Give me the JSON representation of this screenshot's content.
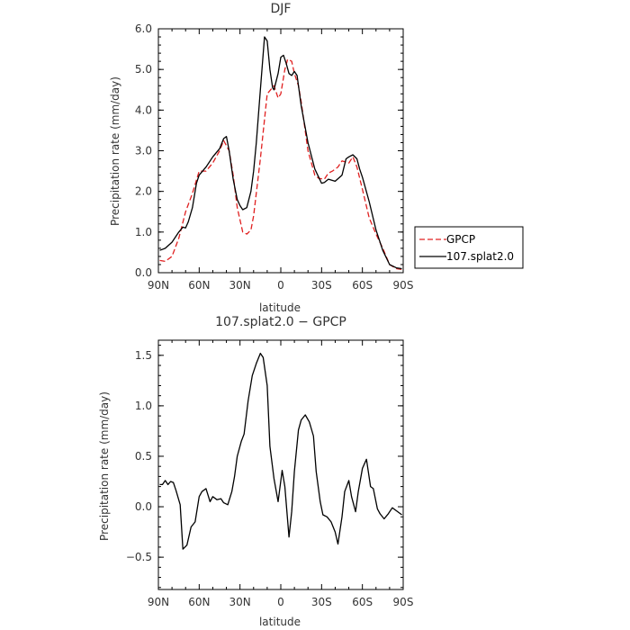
{
  "chart_data": [
    {
      "type": "line",
      "title": "DJF",
      "xlabel": "latitude",
      "ylabel": "Precipitation rate (mm/day)",
      "xlim": [
        90,
        -90
      ],
      "ylim": [
        0,
        6
      ],
      "x_tick_values": [
        90,
        60,
        30,
        0,
        -30,
        -60,
        -90
      ],
      "x_tick_labels": [
        "90N",
        "60N",
        "30N",
        "0",
        "30S",
        "60S",
        "90S"
      ],
      "y_tick_values": [
        0,
        1,
        2,
        3,
        4,
        5,
        6
      ],
      "y_tick_labels": [
        "0.0",
        "1.0",
        "2.0",
        "3.0",
        "4.0",
        "5.0",
        "6.0"
      ],
      "legend_position": "right",
      "series": [
        {
          "name": "GPCP",
          "color": "#e02020",
          "style": "dashed",
          "x": [
            89,
            85,
            80,
            75,
            70,
            65,
            60,
            55,
            50,
            45,
            42,
            38,
            35,
            32,
            28,
            25,
            22,
            20,
            15,
            10,
            5,
            2,
            0,
            -3,
            -5,
            -8,
            -10,
            -13,
            -15,
            -20,
            -25,
            -28,
            -32,
            -35,
            -38,
            -42,
            -45,
            -50,
            -53,
            -56,
            -60,
            -65,
            -70,
            -75,
            -80,
            -85,
            -89
          ],
          "y": [
            0.3,
            0.28,
            0.4,
            0.85,
            1.5,
            1.95,
            2.5,
            2.5,
            2.7,
            3.0,
            3.25,
            3.0,
            2.4,
            1.6,
            1.0,
            0.95,
            1.05,
            1.4,
            2.8,
            4.4,
            4.6,
            4.3,
            4.4,
            5.0,
            5.25,
            5.2,
            4.9,
            4.6,
            4.2,
            3.0,
            2.4,
            2.32,
            2.3,
            2.45,
            2.5,
            2.6,
            2.75,
            2.7,
            2.85,
            2.6,
            2.05,
            1.35,
            0.95,
            0.6,
            0.2,
            0.1,
            0.08
          ]
        },
        {
          "name": "107.splat2.0",
          "color": "#000000",
          "style": "solid",
          "x": [
            89,
            85,
            80,
            75,
            72,
            70,
            68,
            65,
            62,
            60,
            55,
            50,
            45,
            42,
            40,
            38,
            35,
            32,
            30,
            28,
            25,
            22,
            20,
            18,
            15,
            12,
            10,
            8,
            6,
            5,
            2,
            0,
            -2,
            -4,
            -6,
            -8,
            -10,
            -12,
            -15,
            -20,
            -25,
            -30,
            -32,
            -35,
            -40,
            -45,
            -48,
            -50,
            -53,
            -56,
            -58,
            -60,
            -65,
            -70,
            -75,
            -80,
            -85,
            -89
          ],
          "y": [
            0.55,
            0.6,
            0.75,
            1.0,
            1.12,
            1.1,
            1.25,
            1.6,
            2.2,
            2.4,
            2.6,
            2.85,
            3.05,
            3.3,
            3.35,
            3.0,
            2.3,
            1.8,
            1.65,
            1.55,
            1.6,
            2.0,
            2.5,
            3.2,
            4.5,
            5.8,
            5.7,
            5.0,
            4.55,
            4.5,
            4.9,
            5.3,
            5.35,
            5.15,
            4.9,
            4.85,
            4.95,
            4.85,
            4.1,
            3.2,
            2.55,
            2.2,
            2.22,
            2.3,
            2.25,
            2.4,
            2.8,
            2.85,
            2.9,
            2.8,
            2.55,
            2.35,
            1.75,
            1.05,
            0.55,
            0.2,
            0.12,
            0.1
          ]
        }
      ]
    },
    {
      "type": "line",
      "title": "107.splat2.0 − GPCP",
      "xlabel": "latitude",
      "ylabel": "Precipitation rate (mm/day)",
      "xlim": [
        90,
        -90
      ],
      "ylim": [
        -0.82,
        1.65
      ],
      "x_tick_values": [
        90,
        60,
        30,
        0,
        -30,
        -60,
        -90
      ],
      "x_tick_labels": [
        "90N",
        "60N",
        "30N",
        "0",
        "30S",
        "60S",
        "90S"
      ],
      "y_tick_values": [
        -0.5,
        0,
        0.5,
        1,
        1.5
      ],
      "y_tick_labels": [
        "−0.5",
        "0.0",
        "0.5",
        "1.0",
        "1.5"
      ],
      "series": [
        {
          "name": "",
          "color": "#000000",
          "style": "solid",
          "x": [
            89,
            87,
            85,
            83,
            81,
            79,
            77,
            74,
            72,
            69,
            66,
            63,
            60,
            58,
            55,
            52,
            50,
            47,
            44,
            42,
            39,
            36,
            34,
            32,
            29,
            27,
            24,
            21,
            18,
            15,
            13,
            10,
            8,
            5,
            2,
            -1,
            -3,
            -6,
            -8,
            -10,
            -13,
            -15,
            -18,
            -21,
            -24,
            -26,
            -29,
            -31,
            -34,
            -37,
            -40,
            -42,
            -45,
            -47,
            -50,
            -52,
            -55,
            -57,
            -60,
            -63,
            -66,
            -68,
            -71,
            -73,
            -76,
            -79,
            -82,
            -85,
            -89
          ],
          "y": [
            0.22,
            0.22,
            0.26,
            0.22,
            0.25,
            0.24,
            0.16,
            0.02,
            -0.42,
            -0.38,
            -0.2,
            -0.15,
            0.1,
            0.15,
            0.18,
            0.05,
            0.1,
            0.07,
            0.08,
            0.04,
            0.02,
            0.15,
            0.3,
            0.5,
            0.65,
            0.72,
            1.05,
            1.3,
            1.42,
            1.52,
            1.48,
            1.2,
            0.6,
            0.28,
            0.05,
            0.36,
            0.2,
            -0.3,
            -0.05,
            0.35,
            0.76,
            0.86,
            0.91,
            0.84,
            0.7,
            0.35,
            0.05,
            -0.08,
            -0.1,
            -0.15,
            -0.25,
            -0.37,
            -0.1,
            0.15,
            0.26,
            0.1,
            -0.05,
            0.15,
            0.38,
            0.47,
            0.2,
            0.18,
            -0.02,
            -0.07,
            -0.12,
            -0.07,
            -0.01,
            -0.04,
            -0.08
          ]
        }
      ]
    }
  ]
}
